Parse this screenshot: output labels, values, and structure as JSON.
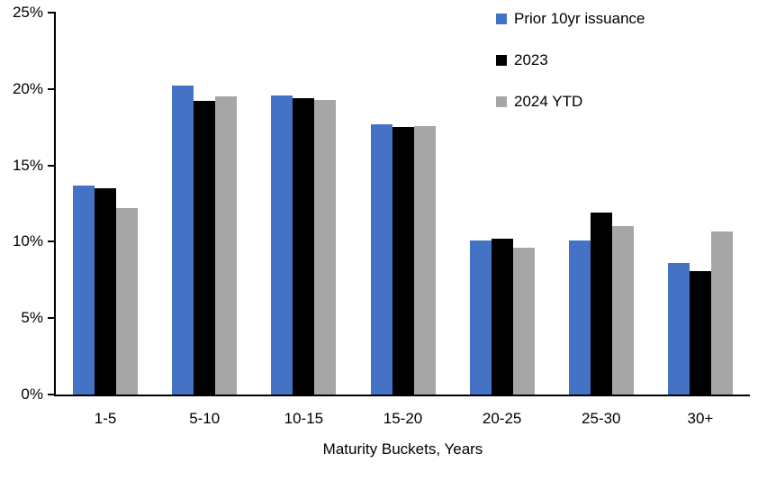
{
  "chart_data": {
    "type": "bar",
    "title": "",
    "xlabel": "Maturity Buckets, Years",
    "ylabel": "",
    "ylim": [
      0,
      25
    ],
    "ytick_step": 5,
    "yticks": [
      0,
      5,
      10,
      15,
      20,
      25
    ],
    "ytick_labels": [
      "0%",
      "5%",
      "10%",
      "15%",
      "20%",
      "25%"
    ],
    "grid": false,
    "legend_position": "top-right",
    "axis_color": "#000000",
    "categories": [
      "1-5",
      "5-10",
      "10-15",
      "15-20",
      "20-25",
      "25-30",
      "30+"
    ],
    "series": [
      {
        "name": "Prior 10yr issuance",
        "color": "#4472C4",
        "values": [
          13.7,
          20.2,
          19.6,
          17.7,
          10.1,
          10.1,
          8.6
        ]
      },
      {
        "name": "2023",
        "color": "#000000",
        "values": [
          13.5,
          19.2,
          19.4,
          17.5,
          10.2,
          11.9,
          8.1
        ]
      },
      {
        "name": "2024 YTD",
        "color": "#A6A6A6",
        "values": [
          12.2,
          19.5,
          19.3,
          17.6,
          9.6,
          11.0,
          10.7
        ]
      }
    ]
  }
}
